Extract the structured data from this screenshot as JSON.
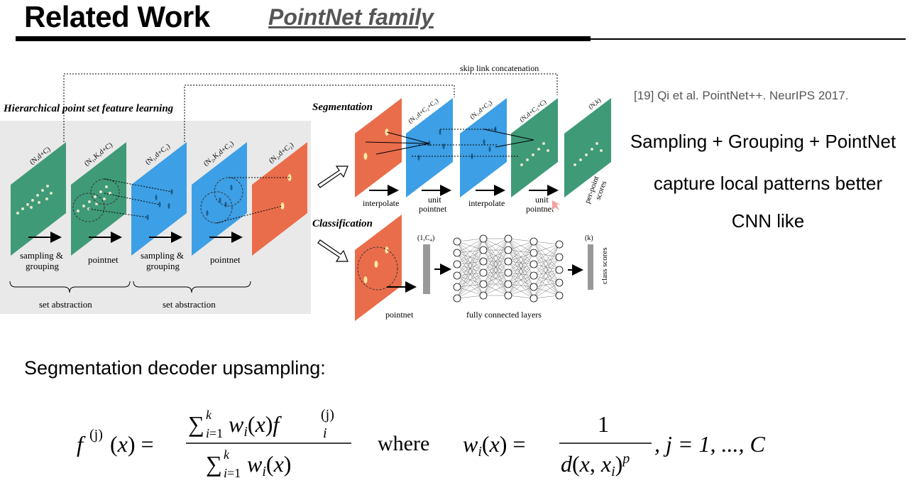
{
  "header": {
    "title": "Related Work",
    "subtitle": "PointNet family"
  },
  "citation": "[19] Qi et al. PointNet++. NeurIPS 2017.",
  "bullets": [
    "Sampling + Grouping + PointNet",
    "capture local patterns better",
    "CNN like"
  ],
  "diagram": {
    "hier_title": "Hierarchical point set feature learning",
    "segmentation_title": "Segmentation",
    "classification_title": "Classification",
    "skip_link": "skip link concatenation",
    "set_abstraction": "set abstraction",
    "plane_labels": [
      "(N,d+C)",
      "(N₁,K,d+C)",
      "(N₁,d+C₁)",
      "(N₂,K,d+C₁)",
      "(N₂,d+C₂)"
    ],
    "seg_plane_labels": [
      "(N₁,d+C₂+C₁)",
      "(N₁,d+C₃)",
      "(N,d+C₃+C)",
      "(N,k)"
    ],
    "ops": {
      "sampling1": "sampling &",
      "grouping1": "grouping",
      "pointnet1": "pointnet",
      "sampling2": "sampling &",
      "grouping2": "grouping",
      "pointnet2": "pointnet",
      "interpolate1": "interpolate",
      "unit1a": "unit",
      "unit1b": "pointnet",
      "interpolate2": "interpolate",
      "unit2a": "unit",
      "unit2b": "pointnet",
      "per_point_a": "per-point",
      "per_point_b": "scores",
      "cls_pointnet": "pointnet",
      "fc_layers": "fully connected layers",
      "class_scores": "class scores",
      "vec_c4": "(1,C₄)",
      "vec_k": "(k)"
    }
  },
  "decoder_label": "Segmentation decoder upsampling:",
  "formula": {
    "where": "where",
    "tail": ", j = 1, ..., C"
  },
  "colors": {
    "green": "#3f9a78",
    "blue": "#3d9fe5",
    "orange": "#ea6d4b",
    "panel": "#e9e9e9"
  }
}
